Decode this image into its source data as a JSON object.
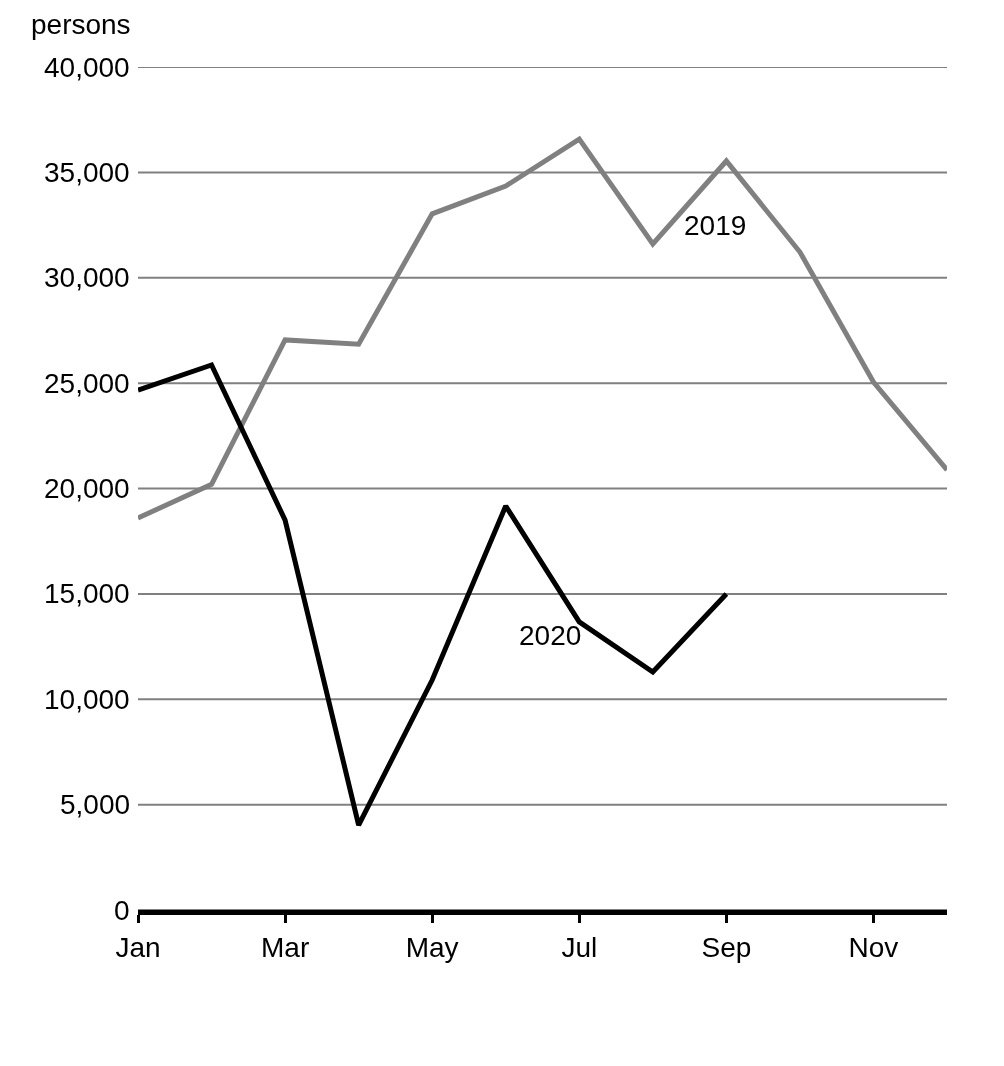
{
  "chart_data": {
    "type": "line",
    "ylabel": "persons",
    "categories": [
      "Jan",
      null,
      "Mar",
      null,
      "May",
      null,
      "Jul",
      null,
      "Sep",
      null,
      "Nov",
      null
    ],
    "series": [
      {
        "name": "2019",
        "color": "#808080",
        "values": [
          18600,
          20200,
          27050,
          26850,
          33030,
          34350,
          36580,
          31600,
          35540,
          31220,
          25050,
          20880
        ]
      },
      {
        "name": "2020",
        "color": "#000000",
        "values": [
          24670,
          25860,
          18500,
          4030,
          10910,
          19170,
          13670,
          11290,
          14990,
          null,
          null,
          null
        ]
      }
    ],
    "ylim": [
      0,
      40000
    ],
    "yticks": [
      {
        "value": 0,
        "label": "0"
      },
      {
        "value": 5000,
        "label": "5,000"
      },
      {
        "value": 10000,
        "label": "10,000"
      },
      {
        "value": 15000,
        "label": "15,000"
      },
      {
        "value": 20000,
        "label": "20,000"
      },
      {
        "value": 25000,
        "label": "25,000"
      },
      {
        "value": 30000,
        "label": "30,000"
      },
      {
        "value": 35000,
        "label": "35,000"
      },
      {
        "value": 40000,
        "label": "40,000"
      }
    ],
    "grid": "y",
    "legend": false,
    "marker": "none",
    "line_style": "solid"
  }
}
